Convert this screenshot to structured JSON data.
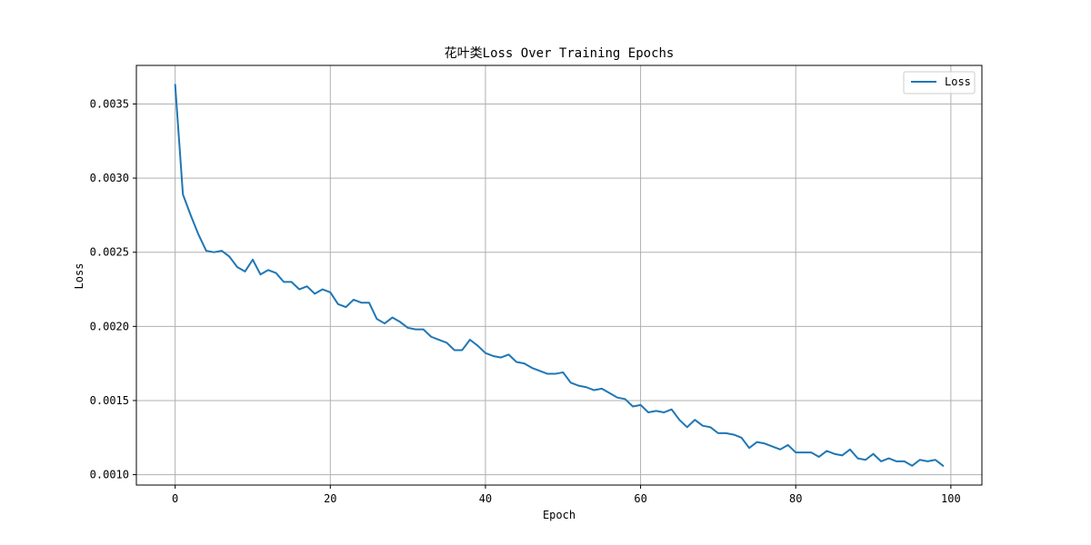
{
  "chart_data": {
    "type": "line",
    "title": "花叶类Loss Over Training Epochs",
    "xlabel": "Epoch",
    "ylabel": "Loss",
    "xlim": [
      -5,
      104
    ],
    "ylim": [
      0.00093,
      0.00376
    ],
    "xticks": [
      0,
      20,
      40,
      60,
      80,
      100
    ],
    "yticks": [
      0.001,
      0.0015,
      0.002,
      0.0025,
      0.003,
      0.0035
    ],
    "ytick_labels": [
      "0.0010",
      "0.0015",
      "0.0020",
      "0.0025",
      "0.0030",
      "0.0035"
    ],
    "grid": true,
    "legend_position": "top-right",
    "series": [
      {
        "name": "Loss",
        "color": "#1f77b4",
        "x": [
          0,
          1,
          2,
          3,
          4,
          5,
          6,
          7,
          8,
          9,
          10,
          11,
          12,
          13,
          14,
          15,
          16,
          17,
          18,
          19,
          20,
          21,
          22,
          23,
          24,
          25,
          26,
          27,
          28,
          29,
          30,
          31,
          32,
          33,
          34,
          35,
          36,
          37,
          38,
          39,
          40,
          41,
          42,
          43,
          44,
          45,
          46,
          47,
          48,
          49,
          50,
          51,
          52,
          53,
          54,
          55,
          56,
          57,
          58,
          59,
          60,
          61,
          62,
          63,
          64,
          65,
          66,
          67,
          68,
          69,
          70,
          71,
          72,
          73,
          74,
          75,
          76,
          77,
          78,
          79,
          80,
          81,
          82,
          83,
          84,
          85,
          86,
          87,
          88,
          89,
          90,
          91,
          92,
          93,
          94,
          95,
          96,
          97,
          98,
          99
        ],
        "values": [
          0.00363,
          0.00289,
          0.00275,
          0.00262,
          0.00251,
          0.0025,
          0.00251,
          0.00247,
          0.0024,
          0.00237,
          0.00245,
          0.00235,
          0.00238,
          0.00236,
          0.0023,
          0.0023,
          0.00225,
          0.00227,
          0.00222,
          0.00225,
          0.00223,
          0.00215,
          0.00213,
          0.00218,
          0.00216,
          0.00216,
          0.00205,
          0.00202,
          0.00206,
          0.00203,
          0.00199,
          0.00198,
          0.00198,
          0.00193,
          0.00191,
          0.00189,
          0.00184,
          0.00184,
          0.00191,
          0.00187,
          0.00182,
          0.0018,
          0.00179,
          0.00181,
          0.00176,
          0.00175,
          0.00172,
          0.0017,
          0.00168,
          0.00168,
          0.00169,
          0.00162,
          0.0016,
          0.00159,
          0.00157,
          0.00158,
          0.00155,
          0.00152,
          0.00151,
          0.00146,
          0.00147,
          0.00142,
          0.00143,
          0.00142,
          0.00144,
          0.00137,
          0.00132,
          0.00137,
          0.00133,
          0.00132,
          0.00128,
          0.00128,
          0.00127,
          0.00125,
          0.00118,
          0.00122,
          0.00121,
          0.00119,
          0.00117,
          0.0012,
          0.00115,
          0.00115,
          0.00115,
          0.00112,
          0.00116,
          0.00114,
          0.00113,
          0.00117,
          0.00111,
          0.0011,
          0.00114,
          0.00109,
          0.00111,
          0.00109,
          0.00109,
          0.00106,
          0.0011,
          0.00109,
          0.0011,
          0.00106
        ]
      }
    ]
  }
}
